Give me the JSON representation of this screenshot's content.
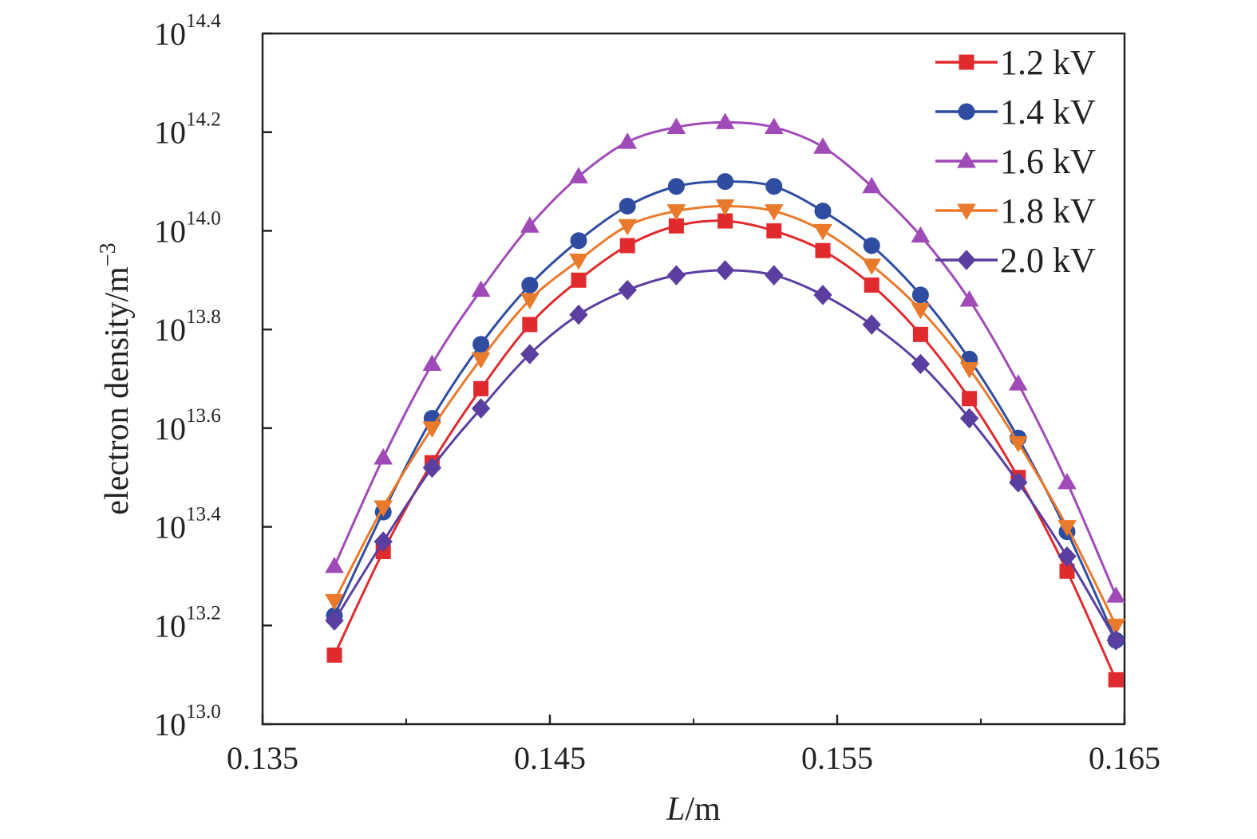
{
  "chart_data": {
    "type": "line",
    "title": "",
    "xlabel_italic": "L",
    "xlabel_unit": "/m",
    "ylabel": "electron density/m",
    "ylabel_exp": "−3",
    "x_scale": "linear",
    "y_scale": "log",
    "xlim": [
      0.135,
      0.165
    ],
    "ylim_log10": [
      13.0,
      14.4
    ],
    "x_ticks": [
      {
        "value": 0.135,
        "label": "0.135"
      },
      {
        "value": 0.145,
        "label": "0.145"
      },
      {
        "value": 0.155,
        "label": "0.155"
      },
      {
        "value": 0.165,
        "label": "0.165"
      }
    ],
    "y_ticks": [
      {
        "value": 13.0,
        "base": "10",
        "exp": "13.0"
      },
      {
        "value": 13.2,
        "base": "10",
        "exp": "13.2"
      },
      {
        "value": 13.4,
        "base": "10",
        "exp": "13.4"
      },
      {
        "value": 13.6,
        "base": "10",
        "exp": "13.6"
      },
      {
        "value": 13.8,
        "base": "10",
        "exp": "13.8"
      },
      {
        "value": 14.0,
        "base": "10",
        "exp": "14.0"
      },
      {
        "value": 14.2,
        "base": "10",
        "exp": "14.2"
      },
      {
        "value": 14.4,
        "base": "10",
        "exp": "14.4"
      }
    ],
    "grid": false,
    "legend_position": "top-right",
    "x": [
      0.1375,
      0.1392,
      0.1409,
      0.1426,
      0.1443,
      0.146,
      0.1477,
      0.1494,
      0.1511,
      0.1528,
      0.1545,
      0.1562,
      0.1579,
      0.1596,
      0.1613,
      0.163,
      0.1647
    ],
    "series": [
      {
        "name": "1.2 kV",
        "color": "#e02a2e",
        "marker": "square",
        "values_log10": [
          13.14,
          13.35,
          13.53,
          13.68,
          13.81,
          13.9,
          13.97,
          14.01,
          14.02,
          14.0,
          13.96,
          13.89,
          13.79,
          13.66,
          13.5,
          13.31,
          13.09
        ]
      },
      {
        "name": "1.4 kV",
        "color": "#2f4da0",
        "marker": "circle",
        "values_log10": [
          13.22,
          13.43,
          13.62,
          13.77,
          13.89,
          13.98,
          14.05,
          14.09,
          14.1,
          14.09,
          14.04,
          13.97,
          13.87,
          13.74,
          13.58,
          13.39,
          13.17
        ]
      },
      {
        "name": "1.6 kV",
        "color": "#a04ab8",
        "marker": "triangle-up",
        "values_log10": [
          13.32,
          13.54,
          13.73,
          13.88,
          14.01,
          14.11,
          14.18,
          14.21,
          14.22,
          14.21,
          14.17,
          14.09,
          13.99,
          13.86,
          13.69,
          13.49,
          13.26
        ]
      },
      {
        "name": "1.8 kV",
        "color": "#ea7a2b",
        "marker": "triangle-down",
        "values_log10": [
          13.25,
          13.44,
          13.6,
          13.74,
          13.86,
          13.94,
          14.01,
          14.04,
          14.05,
          14.04,
          14.0,
          13.93,
          13.84,
          13.72,
          13.57,
          13.4,
          13.2
        ]
      },
      {
        "name": "2.0 kV",
        "color": "#5a3fa0",
        "marker": "diamond",
        "values_log10": [
          13.21,
          13.37,
          13.52,
          13.64,
          13.75,
          13.83,
          13.88,
          13.91,
          13.92,
          13.91,
          13.87,
          13.81,
          13.73,
          13.62,
          13.49,
          13.34,
          13.17
        ]
      }
    ]
  }
}
